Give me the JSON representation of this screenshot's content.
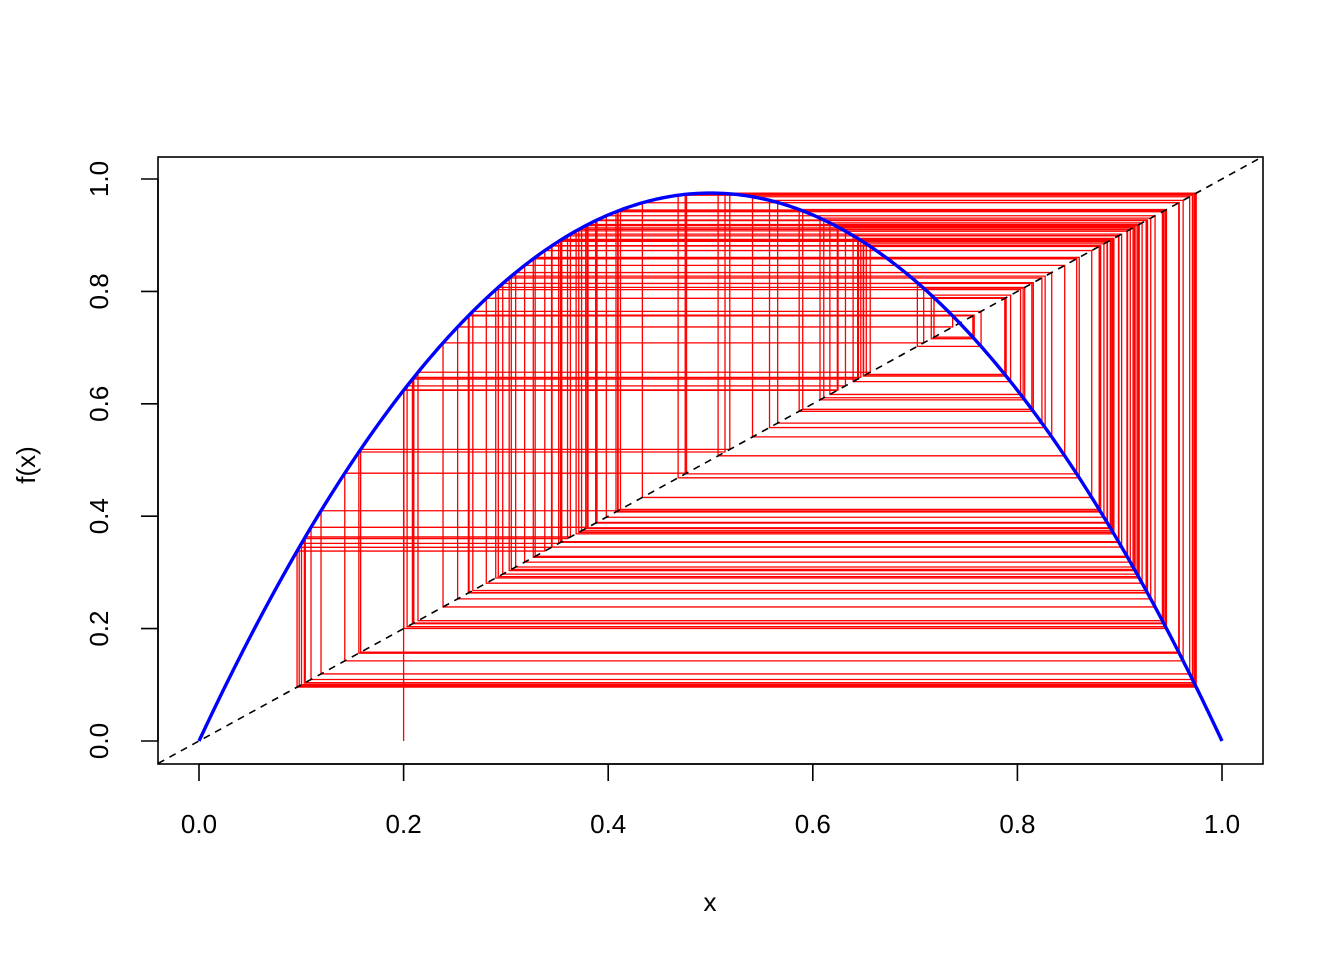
{
  "chart_data": {
    "type": "line",
    "title": "",
    "xlabel": "x",
    "ylabel": "f(x)",
    "xlim": [
      0,
      1
    ],
    "ylim": [
      0,
      1
    ],
    "x_ticks": [
      "0.0",
      "0.2",
      "0.4",
      "0.6",
      "0.8",
      "1.0"
    ],
    "y_ticks": [
      "0.0",
      "0.2",
      "0.4",
      "0.6",
      "0.8",
      "1.0"
    ],
    "grid": false,
    "legend": "none",
    "function": "3.9*x*(1-x)",
    "colors": {
      "curve": "#0000ff",
      "cobweb": "#ff0000",
      "identity": "#000000"
    },
    "series": [
      {
        "kind": "curve",
        "x_range": [
          0,
          1
        ]
      },
      {
        "kind": "identity",
        "x_range": [
          -0.04,
          1.04
        ]
      },
      {
        "kind": "cobweb",
        "x0": 0.2,
        "iterations": 150
      }
    ]
  }
}
